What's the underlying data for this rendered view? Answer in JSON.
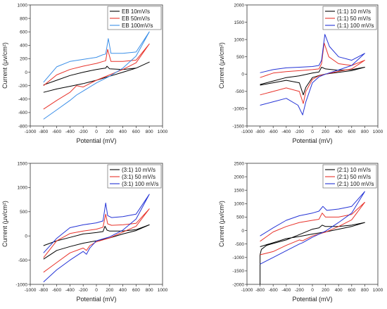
{
  "chart_data": [
    {
      "type": "line",
      "xlabel": "Potential (mV)",
      "ylabel": "Current (μv/cm²)",
      "xlim": [
        -1000,
        1000
      ],
      "ylim": [
        -800,
        1000
      ],
      "xticks": [
        -1000,
        -800,
        -600,
        -400,
        -200,
        0,
        200,
        400,
        600,
        800,
        1000
      ],
      "yticks": [
        -800,
        -600,
        -400,
        -200,
        0,
        200,
        400,
        600,
        800,
        1000
      ],
      "legend_position": "top-right",
      "series": [
        {
          "name": "EB 10mV/s",
          "color": "#000000",
          "x": [
            -800,
            -600,
            -400,
            -200,
            0,
            100,
            140,
            160,
            200,
            400,
            600,
            800,
            600,
            400,
            200,
            0,
            -200,
            -400,
            -600,
            -800
          ],
          "y": [
            -190,
            -120,
            -50,
            0,
            40,
            55,
            60,
            90,
            50,
            40,
            60,
            150,
            60,
            0,
            -60,
            -120,
            -170,
            -210,
            -250,
            -300
          ]
        },
        {
          "name": "EB 50mV/s",
          "color": "#e8332b",
          "x": [
            -800,
            -600,
            -400,
            -200,
            0,
            100,
            140,
            170,
            220,
            400,
            600,
            800,
            600,
            400,
            200,
            0,
            -200,
            -300,
            -400,
            -600,
            -800
          ],
          "y": [
            -200,
            -40,
            40,
            90,
            130,
            160,
            170,
            340,
            160,
            160,
            180,
            420,
            140,
            40,
            -40,
            -120,
            -220,
            -200,
            -300,
            -420,
            -550
          ]
        },
        {
          "name": "EB 100mV/s",
          "color": "#3b8fe8",
          "x": [
            -800,
            -600,
            -400,
            -200,
            0,
            100,
            140,
            180,
            220,
            400,
            600,
            800,
            600,
            400,
            200,
            0,
            -200,
            -300,
            -400,
            -600,
            -800
          ],
          "y": [
            -150,
            80,
            160,
            190,
            220,
            260,
            270,
            500,
            280,
            280,
            300,
            600,
            240,
            60,
            -60,
            -160,
            -280,
            -340,
            -420,
            -560,
            -700
          ]
        }
      ]
    },
    {
      "type": "line",
      "xlabel": "Potential (mV)",
      "ylabel": "Current (μv/cm²)",
      "xlim": [
        -1000,
        1000
      ],
      "ylim": [
        -1500,
        2000
      ],
      "xticks": [
        -1000,
        -800,
        -600,
        -400,
        -200,
        0,
        200,
        400,
        600,
        800,
        1000
      ],
      "yticks": [
        -1500,
        -1000,
        -500,
        0,
        500,
        1000,
        1500,
        2000
      ],
      "legend_position": "top-right",
      "series": [
        {
          "name": "(1:1) 10 mV/s",
          "color": "#000000",
          "x": [
            -800,
            -600,
            -400,
            -200,
            0,
            100,
            140,
            200,
            400,
            600,
            800,
            600,
            400,
            200,
            100,
            0,
            -100,
            -140,
            -200,
            -400,
            -600,
            -800
          ],
          "y": [
            -300,
            -200,
            -100,
            -50,
            30,
            60,
            200,
            150,
            110,
            130,
            200,
            100,
            50,
            0,
            -40,
            -100,
            -380,
            -600,
            -250,
            -180,
            -250,
            -320
          ]
        },
        {
          "name": "(1:1) 50 mV/s",
          "color": "#e8332b",
          "x": [
            -800,
            -600,
            -400,
            -200,
            0,
            100,
            140,
            180,
            250,
            400,
            600,
            800,
            600,
            400,
            200,
            100,
            0,
            -100,
            -140,
            -200,
            -400,
            -600,
            -800
          ],
          "y": [
            -100,
            30,
            70,
            100,
            130,
            150,
            300,
            900,
            500,
            300,
            250,
            400,
            150,
            80,
            0,
            -50,
            -150,
            -500,
            -850,
            -500,
            -400,
            -500,
            -600
          ]
        },
        {
          "name": "(1:1) 100 mV/s",
          "color": "#2433d6",
          "x": [
            -800,
            -600,
            -400,
            -200,
            0,
            100,
            140,
            190,
            260,
            400,
            600,
            800,
            600,
            400,
            200,
            100,
            0,
            -100,
            -150,
            -220,
            -400,
            -600,
            -800
          ],
          "y": [
            40,
            130,
            180,
            200,
            220,
            250,
            400,
            1150,
            800,
            500,
            400,
            600,
            250,
            120,
            0,
            -80,
            -250,
            -800,
            -1180,
            -900,
            -700,
            -800,
            -900
          ]
        }
      ]
    },
    {
      "type": "line",
      "xlabel": "Potential (mV)",
      "ylabel": "Current (μv/cm²)",
      "xlim": [
        -1000,
        1000
      ],
      "ylim": [
        -1000,
        1500
      ],
      "xticks": [
        -1000,
        -800,
        -600,
        -400,
        -200,
        0,
        200,
        400,
        600,
        800,
        1000
      ],
      "yticks": [
        -1000,
        -500,
        0,
        500,
        1000,
        1500
      ],
      "legend_position": "top-right",
      "series": [
        {
          "name": "(3:1) 10 mV/s",
          "color": "#000000",
          "x": [
            -800,
            -600,
            -400,
            -200,
            0,
            100,
            130,
            160,
            200,
            400,
            600,
            800,
            600,
            400,
            200,
            0,
            -200,
            -400,
            -600,
            -800
          ],
          "y": [
            -200,
            -100,
            -30,
            40,
            70,
            90,
            200,
            120,
            100,
            100,
            130,
            230,
            110,
            40,
            -40,
            -100,
            -150,
            -220,
            -300,
            -480
          ]
        },
        {
          "name": "(3:1) 50 mV/s",
          "color": "#e8332b",
          "x": [
            -800,
            -600,
            -400,
            -200,
            0,
            100,
            140,
            170,
            230,
            400,
            600,
            800,
            600,
            400,
            200,
            0,
            -100,
            -150,
            -200,
            -400,
            -600,
            -800
          ],
          "y": [
            -450,
            -100,
            50,
            100,
            140,
            180,
            450,
            250,
            220,
            230,
            260,
            560,
            200,
            80,
            -40,
            -120,
            -200,
            -300,
            -250,
            -350,
            -550,
            -750
          ]
        },
        {
          "name": "(3:1) 100 mV/s",
          "color": "#2433d6",
          "x": [
            -800,
            -600,
            -400,
            -200,
            0,
            100,
            140,
            170,
            230,
            400,
            600,
            800,
            600,
            400,
            200,
            0,
            -100,
            -150,
            -200,
            -400,
            -600,
            -800
          ],
          "y": [
            -350,
            -50,
            170,
            230,
            270,
            310,
            680,
            420,
            380,
            400,
            450,
            860,
            350,
            120,
            -20,
            -100,
            -250,
            -380,
            -320,
            -500,
            -700,
            -950
          ]
        }
      ]
    },
    {
      "type": "line",
      "xlabel": "Potential (mV)",
      "ylabel": "Current (μv/cm²)",
      "xlim": [
        -1000,
        1000
      ],
      "ylim": [
        -2000,
        2500
      ],
      "xticks": [
        -1000,
        -800,
        -600,
        -400,
        -200,
        0,
        200,
        400,
        600,
        800,
        1000
      ],
      "yticks": [
        -2000,
        -1500,
        -1000,
        -500,
        0,
        500,
        1000,
        1500,
        2000,
        2500
      ],
      "legend_position": "top-right",
      "series": [
        {
          "name": "(2:1) 10 mV/s",
          "color": "#000000",
          "x": [
            -800,
            -800,
            -780,
            -700,
            -600,
            -400,
            -200,
            0,
            100,
            150,
            200,
            400,
            600,
            800,
            600,
            400,
            200,
            0,
            -200,
            -400,
            -600,
            -800
          ],
          "y": [
            -2000,
            -900,
            -700,
            -550,
            -480,
            -350,
            -150,
            50,
            100,
            200,
            150,
            150,
            200,
            300,
            150,
            50,
            -50,
            -130,
            -220,
            -300,
            -450,
            -600
          ]
        },
        {
          "name": "(2:1) 50 mV/s",
          "color": "#e8332b",
          "x": [
            -800,
            -600,
            -400,
            -200,
            0,
            100,
            150,
            200,
            400,
            600,
            800,
            600,
            400,
            200,
            0,
            -150,
            -200,
            -400,
            -600,
            -800
          ],
          "y": [
            -400,
            -50,
            150,
            300,
            380,
            420,
            650,
            500,
            500,
            600,
            1050,
            400,
            150,
            -60,
            -200,
            -380,
            -350,
            -550,
            -780,
            -900
          ]
        },
        {
          "name": "(2:1) 100 mV/s",
          "color": "#2433d6",
          "x": [
            -800,
            -600,
            -400,
            -200,
            0,
            100,
            160,
            220,
            400,
            600,
            800,
            600,
            400,
            200,
            0,
            -150,
            -200,
            -400,
            -600,
            -800
          ],
          "y": [
            -200,
            100,
            380,
            550,
            650,
            720,
            900,
            750,
            800,
            900,
            1450,
            650,
            300,
            -20,
            -250,
            -450,
            -500,
            -750,
            -1000,
            -1250
          ]
        }
      ]
    }
  ]
}
